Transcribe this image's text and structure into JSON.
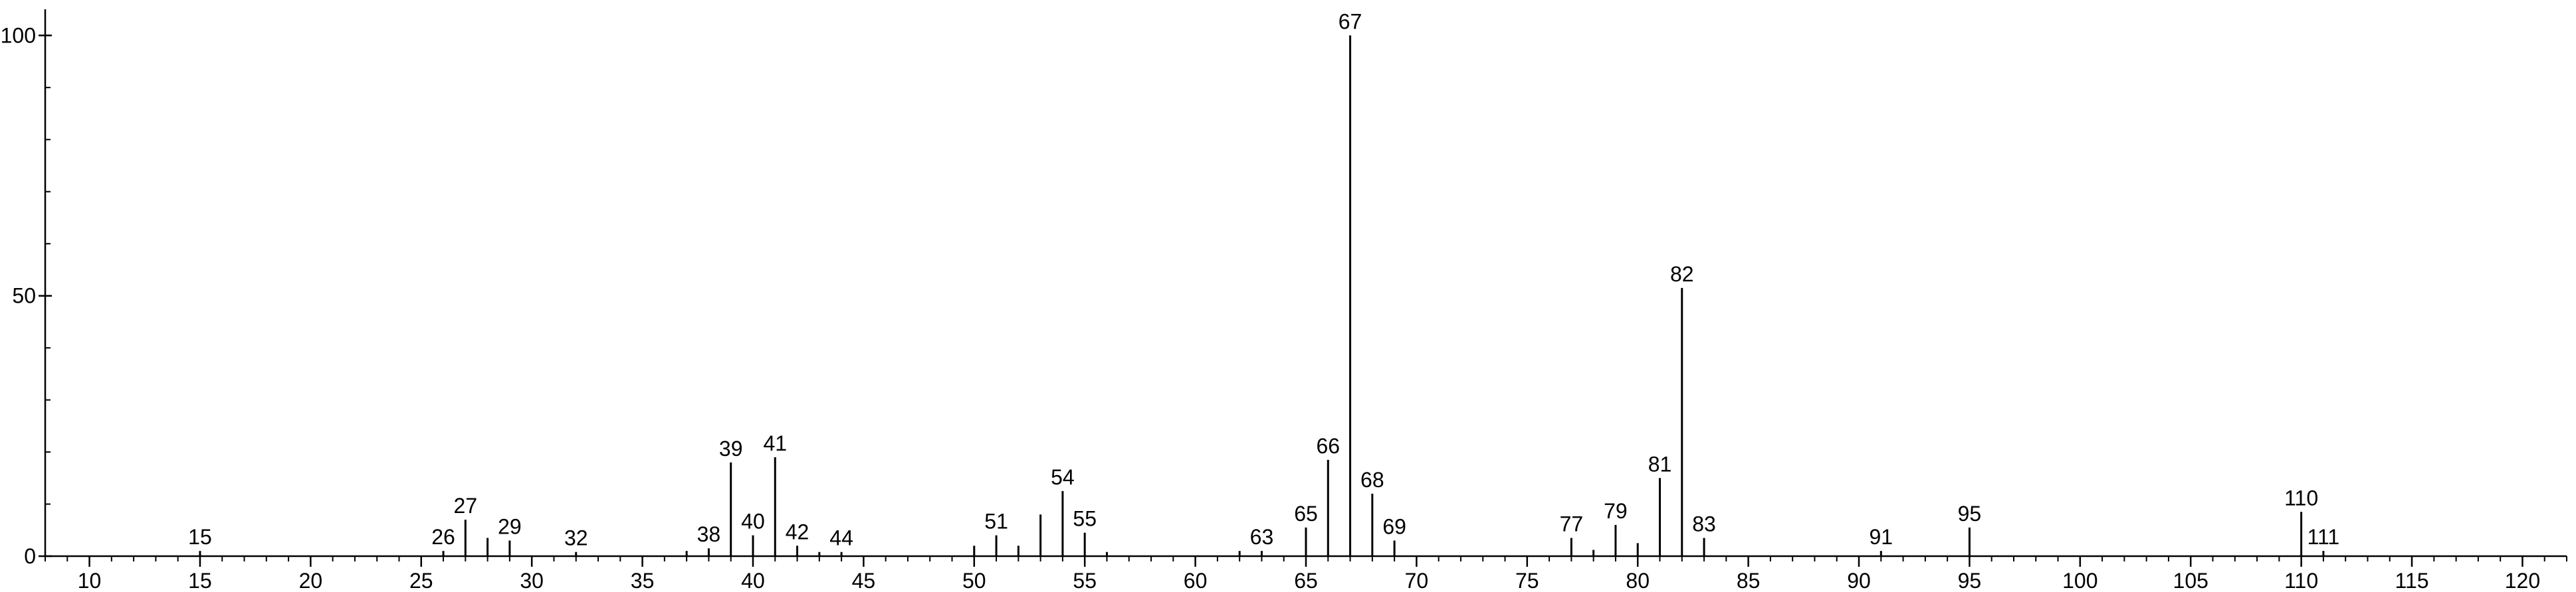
{
  "chart_data": {
    "type": "bar",
    "title": "",
    "xlabel": "",
    "ylabel": "",
    "xlim": [
      8,
      122
    ],
    "ylim": [
      0,
      104
    ],
    "x_ticks": [
      10,
      15,
      20,
      25,
      30,
      35,
      40,
      45,
      50,
      55,
      60,
      65,
      70,
      75,
      80,
      85,
      90,
      95,
      100,
      105,
      110,
      115,
      120
    ],
    "y_ticks": [
      0,
      50,
      100
    ],
    "grid": false,
    "legend": "none",
    "peaks": [
      {
        "mz": 15,
        "intensity": 1.0,
        "label": "15"
      },
      {
        "mz": 26,
        "intensity": 1.0,
        "label": "26"
      },
      {
        "mz": 27,
        "intensity": 7.0,
        "label": "27"
      },
      {
        "mz": 28,
        "intensity": 3.5,
        "label": ""
      },
      {
        "mz": 29,
        "intensity": 3.0,
        "label": "29"
      },
      {
        "mz": 32,
        "intensity": 0.8,
        "label": "32"
      },
      {
        "mz": 37,
        "intensity": 1.0,
        "label": ""
      },
      {
        "mz": 38,
        "intensity": 1.5,
        "label": "38"
      },
      {
        "mz": 39,
        "intensity": 18.0,
        "label": "39"
      },
      {
        "mz": 40,
        "intensity": 4.0,
        "label": "40"
      },
      {
        "mz": 41,
        "intensity": 19.0,
        "label": "41"
      },
      {
        "mz": 42,
        "intensity": 2.0,
        "label": "42"
      },
      {
        "mz": 43,
        "intensity": 0.8,
        "label": ""
      },
      {
        "mz": 44,
        "intensity": 0.8,
        "label": "44"
      },
      {
        "mz": 50,
        "intensity": 2.0,
        "label": ""
      },
      {
        "mz": 51,
        "intensity": 4.0,
        "label": "51"
      },
      {
        "mz": 52,
        "intensity": 2.0,
        "label": ""
      },
      {
        "mz": 53,
        "intensity": 8.0,
        "label": ""
      },
      {
        "mz": 54,
        "intensity": 12.5,
        "label": "54"
      },
      {
        "mz": 55,
        "intensity": 4.5,
        "label": "55"
      },
      {
        "mz": 56,
        "intensity": 0.8,
        "label": ""
      },
      {
        "mz": 62,
        "intensity": 1.0,
        "label": ""
      },
      {
        "mz": 63,
        "intensity": 1.0,
        "label": "63"
      },
      {
        "mz": 65,
        "intensity": 5.5,
        "label": "65"
      },
      {
        "mz": 66,
        "intensity": 18.5,
        "label": "66"
      },
      {
        "mz": 67,
        "intensity": 100.0,
        "label": "67"
      },
      {
        "mz": 68,
        "intensity": 12.0,
        "label": "68"
      },
      {
        "mz": 69,
        "intensity": 3.0,
        "label": "69"
      },
      {
        "mz": 77,
        "intensity": 3.5,
        "label": "77"
      },
      {
        "mz": 78,
        "intensity": 1.2,
        "label": ""
      },
      {
        "mz": 79,
        "intensity": 6.0,
        "label": "79"
      },
      {
        "mz": 80,
        "intensity": 2.5,
        "label": ""
      },
      {
        "mz": 81,
        "intensity": 15.0,
        "label": "81"
      },
      {
        "mz": 82,
        "intensity": 51.5,
        "label": "82"
      },
      {
        "mz": 83,
        "intensity": 3.5,
        "label": "83"
      },
      {
        "mz": 91,
        "intensity": 1.0,
        "label": "91"
      },
      {
        "mz": 95,
        "intensity": 5.5,
        "label": "95"
      },
      {
        "mz": 110,
        "intensity": 8.5,
        "label": "110"
      },
      {
        "mz": 111,
        "intensity": 1.0,
        "label": "111"
      }
    ]
  }
}
